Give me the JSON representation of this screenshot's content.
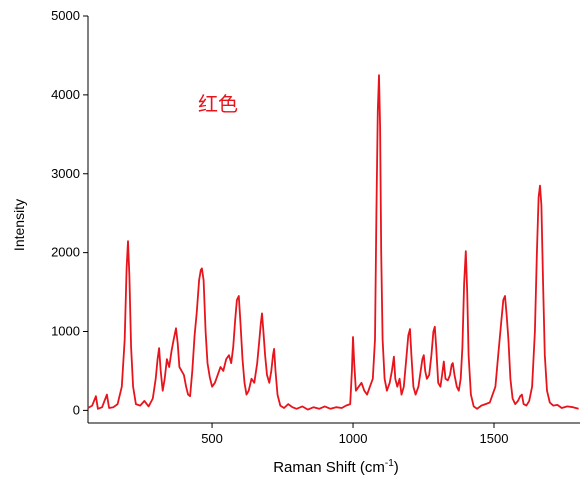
{
  "chart_data": {
    "type": "line",
    "annotation": "红色",
    "y_label": "Intensity",
    "x_label": "Raman Shift (cm",
    "x_label_sup": "-1",
    "x_label_end": ")",
    "xlim": [
      60,
      1805
    ],
    "xticks": [
      500,
      1000,
      1500
    ],
    "ylim": [
      -160,
      5000
    ],
    "yticks": [
      0,
      1000,
      2000,
      3000,
      4000,
      5000
    ],
    "series": [
      {
        "color": "#e8141c",
        "x": [
          60,
          75,
          88,
          95,
          110,
          127,
          135,
          150,
          165,
          180,
          190,
          197,
          202,
          207,
          213,
          220,
          230,
          245,
          260,
          275,
          290,
          300,
          307,
          312,
          318,
          325,
          332,
          340,
          348,
          356,
          364,
          372,
          378,
          384,
          392,
          400,
          408,
          415,
          422,
          430,
          438,
          446,
          454,
          460,
          464,
          470,
          477,
          484,
          492,
          500,
          510,
          520,
          530,
          540,
          550,
          560,
          568,
          575,
          582,
          588,
          595,
          601,
          608,
          615,
          622,
          630,
          640,
          650,
          660,
          668,
          673,
          677,
          682,
          688,
          695,
          703,
          710,
          716,
          720,
          725,
          732,
          742,
          755,
          770,
          785,
          800,
          820,
          840,
          860,
          880,
          900,
          920,
          940,
          960,
          975,
          990,
          996,
          1000,
          1004,
          1010,
          1020,
          1030,
          1040,
          1050,
          1060,
          1070,
          1078,
          1083,
          1088,
          1092,
          1096,
          1100,
          1105,
          1112,
          1120,
          1130,
          1138,
          1145,
          1150,
          1157,
          1165,
          1172,
          1180,
          1190,
          1196,
          1202,
          1207,
          1214,
          1222,
          1232,
          1240,
          1246,
          1251,
          1256,
          1262,
          1270,
          1278,
          1285,
          1290,
          1295,
          1302,
          1310,
          1316,
          1322,
          1328,
          1336,
          1344,
          1350,
          1354,
          1360,
          1368,
          1375,
          1382,
          1388,
          1394,
          1400,
          1405,
          1410,
          1418,
          1428,
          1440,
          1455,
          1470,
          1485,
          1495,
          1505,
          1515,
          1525,
          1533,
          1539,
          1545,
          1551,
          1558,
          1566,
          1575,
          1585,
          1593,
          1599,
          1605,
          1615,
          1625,
          1635,
          1645,
          1652,
          1658,
          1663,
          1668,
          1674,
          1680,
          1688,
          1698,
          1710,
          1725,
          1740,
          1760,
          1780,
          1800
        ],
        "values": [
          30,
          60,
          180,
          20,
          40,
          200,
          30,
          40,
          80,
          300,
          900,
          1800,
          2145,
          1700,
          800,
          300,
          80,
          60,
          120,
          50,
          150,
          400,
          650,
          790,
          500,
          250,
          400,
          650,
          550,
          750,
          900,
          1040,
          850,
          550,
          500,
          450,
          300,
          200,
          180,
          500,
          950,
          1250,
          1650,
          1780,
          1800,
          1650,
          1000,
          600,
          420,
          300,
          350,
          450,
          550,
          500,
          650,
          700,
          600,
          800,
          1150,
          1400,
          1450,
          1100,
          650,
          350,
          200,
          250,
          400,
          350,
          600,
          900,
          1100,
          1230,
          1000,
          700,
          450,
          350,
          500,
          700,
          780,
          500,
          200,
          60,
          30,
          80,
          40,
          20,
          50,
          10,
          40,
          20,
          50,
          20,
          40,
          30,
          60,
          80,
          500,
          930,
          600,
          250,
          300,
          350,
          250,
          200,
          300,
          400,
          900,
          2500,
          3800,
          4250,
          3600,
          2000,
          900,
          400,
          250,
          350,
          500,
          680,
          400,
          300,
          400,
          200,
          300,
          700,
          950,
          1030,
          700,
          300,
          200,
          300,
          500,
          650,
          700,
          500,
          400,
          450,
          700,
          1000,
          1060,
          800,
          350,
          300,
          450,
          620,
          400,
          380,
          450,
          580,
          600,
          450,
          300,
          250,
          400,
          800,
          1600,
          2020,
          1500,
          700,
          200,
          50,
          20,
          60,
          80,
          100,
          200,
          300,
          700,
          1100,
          1400,
          1450,
          1200,
          900,
          400,
          150,
          80,
          120,
          180,
          200,
          80,
          60,
          120,
          300,
          1000,
          2000,
          2700,
          2850,
          2600,
          1600,
          700,
          250,
          100,
          60,
          70,
          30,
          50,
          40,
          20
        ]
      }
    ]
  }
}
